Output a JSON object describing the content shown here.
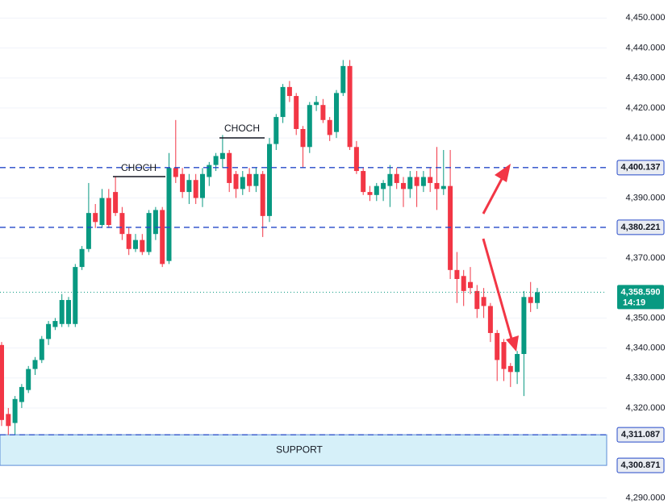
{
  "chart_data": {
    "type": "candlestick",
    "open": [
      4341,
      4318,
      4315,
      4322,
      4326,
      4333,
      4336,
      4343,
      4347,
      4348,
      4348,
      4348,
      4367,
      4373,
      4385,
      4381,
      4390,
      4392,
      4385,
      4378,
      4373,
      4376,
      4372,
      4378,
      4386,
      4369,
      4400,
      4398,
      4392,
      4396,
      4390,
      4397,
      4401,
      4403,
      4405,
      4398,
      4393,
      4398,
      4394,
      4398,
      4384,
      4408,
      4417,
      4427,
      4424,
      4413,
      4407,
      4421,
      4421,
      4416,
      4412,
      4425,
      4434,
      4407,
      4399,
      4392,
      4391,
      4393,
      4394,
      4398,
      4395,
      4393,
      4397,
      4394,
      4397,
      4395,
      4393,
      4394,
      4366,
      4364,
      4362,
      4359,
      4357,
      4354,
      4345,
      4342,
      4334,
      4332,
      4338,
      4357,
      4355
    ],
    "high": [
      4342,
      4320,
      4324,
      4328,
      4334,
      4337,
      4344,
      4349,
      4350,
      4358,
      4357,
      4368,
      4374,
      4395,
      4388,
      4393,
      4393,
      4397,
      4387,
      4380,
      4378,
      4378,
      4386,
      4387,
      4387,
      4405,
      4416,
      4400,
      4398,
      4398,
      4400,
      4402,
      4405,
      4411,
      4406,
      4399,
      4399,
      4400,
      4400,
      4399,
      4410,
      4418,
      4428,
      4429,
      4425,
      4414,
      4422,
      4424,
      4423,
      4417,
      4426,
      4436,
      4436,
      4409,
      4400,
      4394,
      4395,
      4396,
      4401,
      4400,
      4397,
      4399,
      4399,
      4399,
      4400,
      4407,
      4406,
      4406,
      4372,
      4366,
      4367,
      4361,
      4360,
      4355,
      4346,
      4343,
      4335,
      4339,
      4359,
      4362,
      4360
    ],
    "low": [
      4314,
      4311,
      4311,
      4320,
      4325,
      4331,
      4335,
      4341,
      4346,
      4347,
      4347,
      4347,
      4366,
      4372,
      4380,
      4380,
      4380,
      4384,
      4376,
      4371,
      4372,
      4371,
      4371,
      4376,
      4367,
      4368,
      4395,
      4390,
      4388,
      4388,
      4387,
      4394,
      4399,
      4400,
      4392,
      4390,
      4391,
      4392,
      4392,
      4377,
      4382,
      4406,
      4415,
      4422,
      4411,
      4400,
      4405,
      4419,
      4415,
      4409,
      4410,
      4424,
      4406,
      4398,
      4391,
      4389,
      4389,
      4389,
      4387,
      4393,
      4387,
      4390,
      4387,
      4392,
      4392,
      4386,
      4391,
      4363,
      4355,
      4354,
      4358,
      4350,
      4350,
      4342,
      4329,
      4329,
      4327,
      4328,
      4324,
      4352,
      4353
    ],
    "close": [
      4316,
      4314,
      4323,
      4327,
      4333,
      4336,
      4343,
      4348,
      4349,
      4356,
      4356,
      4367,
      4373,
      4385,
      4382,
      4390,
      4381,
      4385,
      4378,
      4373,
      4376,
      4372,
      4385,
      4386,
      4368,
      4400,
      4397,
      4392,
      4396,
      4390,
      4398,
      4401,
      4404,
      4405,
      4395,
      4393,
      4397,
      4394,
      4398,
      4384,
      4408,
      4417,
      4427,
      4424,
      4413,
      4407,
      4421,
      4422,
      4416,
      4411,
      4425,
      4434,
      4407,
      4399,
      4392,
      4391,
      4394,
      4395,
      4398,
      4395,
      4393,
      4397,
      4394,
      4397,
      4395,
      4393,
      4394,
      4366,
      4363,
      4359,
      4360,
      4353,
      4354,
      4345,
      4336,
      4333,
      4332,
      4338,
      4357,
      4355,
      4358.59
    ],
    "up_color": "#089981",
    "down_color": "#f23645",
    "ylim": [
      4288,
      4456
    ],
    "yticks": [
      {
        "value": 4450,
        "label": "4,450.000"
      },
      {
        "value": 4440,
        "label": "4,440.000"
      },
      {
        "value": 4430,
        "label": "4,430.000"
      },
      {
        "value": 4420,
        "label": "4,420.000"
      },
      {
        "value": 4410,
        "label": "4,410.000"
      },
      {
        "value": 4390,
        "label": "4,390.000"
      },
      {
        "value": 4370,
        "label": "4,370.000"
      },
      {
        "value": 4350,
        "label": "4,350.000"
      },
      {
        "value": 4340,
        "label": "4,340.000"
      },
      {
        "value": 4330,
        "label": "4,330.000"
      },
      {
        "value": 4320,
        "label": "4,320.000"
      },
      {
        "value": 4290,
        "label": "4,290.000"
      }
    ],
    "levels": [
      {
        "value": 4400.137,
        "label": "4,400.137"
      },
      {
        "value": 4380.221,
        "label": "4,380.221"
      },
      {
        "value": 4311.087,
        "label": "4,311.087"
      }
    ],
    "zone": {
      "label": "SUPPORT",
      "low": {
        "value": 4300.871,
        "label": "4,300.871"
      },
      "high": 4311.087
    },
    "last_price": {
      "value": 4358.59,
      "label": "4,358.590",
      "timer": "14:19"
    },
    "annotations": [
      "CHOCH",
      "CHOCH"
    ]
  }
}
